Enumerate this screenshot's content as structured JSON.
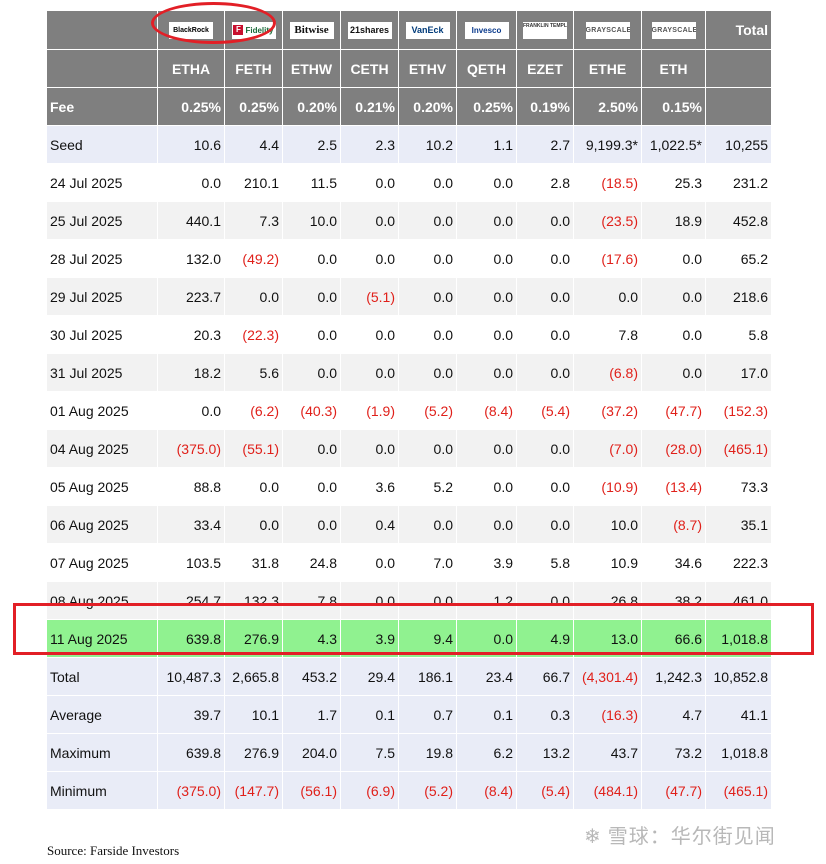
{
  "header": {
    "total_label": "Total",
    "funds": [
      {
        "logo": "BlackRock",
        "ticker": "ETHA",
        "fee": "0.25%"
      },
      {
        "logo": "Fidelity",
        "ticker": "FETH",
        "fee": "0.25%"
      },
      {
        "logo": "Bitwise",
        "ticker": "ETHW",
        "fee": "0.20%"
      },
      {
        "logo": "21shares",
        "ticker": "CETH",
        "fee": "0.21%"
      },
      {
        "logo": "VanEck",
        "ticker": "ETHV",
        "fee": "0.20%"
      },
      {
        "logo": "Invesco",
        "ticker": "QETH",
        "fee": "0.25%"
      },
      {
        "logo": "FRANKLIN TEMPLETON",
        "ticker": "EZET",
        "fee": "0.19%"
      },
      {
        "logo": "GRAYSCALE",
        "ticker": "ETHE",
        "fee": "2.50%"
      },
      {
        "logo": "GRAYSCALE",
        "ticker": "ETH",
        "fee": "0.15%"
      }
    ],
    "fee_label": "Fee"
  },
  "rows": [
    {
      "label": "Seed",
      "values": [
        "10.6",
        "4.4",
        "2.5",
        "2.3",
        "10.2",
        "1.1",
        "2.7",
        "9,199.3*",
        "1,022.5*",
        "10,255"
      ]
    },
    {
      "label": "24 Jul 2025",
      "values": [
        "0.0",
        "210.1",
        "11.5",
        "0.0",
        "0.0",
        "0.0",
        "2.8",
        "(18.5)",
        "25.3",
        "231.2"
      ]
    },
    {
      "label": "25 Jul 2025",
      "values": [
        "440.1",
        "7.3",
        "10.0",
        "0.0",
        "0.0",
        "0.0",
        "0.0",
        "(23.5)",
        "18.9",
        "452.8"
      ]
    },
    {
      "label": "28 Jul 2025",
      "values": [
        "132.0",
        "(49.2)",
        "0.0",
        "0.0",
        "0.0",
        "0.0",
        "0.0",
        "(17.6)",
        "0.0",
        "65.2"
      ]
    },
    {
      "label": "29 Jul 2025",
      "values": [
        "223.7",
        "0.0",
        "0.0",
        "(5.1)",
        "0.0",
        "0.0",
        "0.0",
        "0.0",
        "0.0",
        "218.6"
      ]
    },
    {
      "label": "30 Jul 2025",
      "values": [
        "20.3",
        "(22.3)",
        "0.0",
        "0.0",
        "0.0",
        "0.0",
        "0.0",
        "7.8",
        "0.0",
        "5.8"
      ]
    },
    {
      "label": "31 Jul 2025",
      "values": [
        "18.2",
        "5.6",
        "0.0",
        "0.0",
        "0.0",
        "0.0",
        "0.0",
        "(6.8)",
        "0.0",
        "17.0"
      ]
    },
    {
      "label": "01 Aug 2025",
      "values": [
        "0.0",
        "(6.2)",
        "(40.3)",
        "(1.9)",
        "(5.2)",
        "(8.4)",
        "(5.4)",
        "(37.2)",
        "(47.7)",
        "(152.3)"
      ]
    },
    {
      "label": "04 Aug 2025",
      "values": [
        "(375.0)",
        "(55.1)",
        "0.0",
        "0.0",
        "0.0",
        "0.0",
        "0.0",
        "(7.0)",
        "(28.0)",
        "(465.1)"
      ]
    },
    {
      "label": "05 Aug 2025",
      "values": [
        "88.8",
        "0.0",
        "0.0",
        "3.6",
        "5.2",
        "0.0",
        "0.0",
        "(10.9)",
        "(13.4)",
        "73.3"
      ]
    },
    {
      "label": "06 Aug 2025",
      "values": [
        "33.4",
        "0.0",
        "0.0",
        "0.4",
        "0.0",
        "0.0",
        "0.0",
        "10.0",
        "(8.7)",
        "35.1"
      ]
    },
    {
      "label": "07 Aug 2025",
      "values": [
        "103.5",
        "31.8",
        "24.8",
        "0.0",
        "7.0",
        "3.9",
        "5.8",
        "10.9",
        "34.6",
        "222.3"
      ]
    },
    {
      "label": "08 Aug 2025",
      "values": [
        "254.7",
        "132.3",
        "7.8",
        "0.0",
        "0.0",
        "1.2",
        "0.0",
        "26.8",
        "38.2",
        "461.0"
      ]
    },
    {
      "label": "11 Aug 2025",
      "values": [
        "639.8",
        "276.9",
        "4.3",
        "3.9",
        "9.4",
        "0.0",
        "4.9",
        "13.0",
        "66.6",
        "1,018.8"
      ]
    }
  ],
  "summary": [
    {
      "label": "Total",
      "values": [
        "10,487.3",
        "2,665.8",
        "453.2",
        "29.4",
        "186.1",
        "23.4",
        "66.7",
        "(4,301.4)",
        "1,242.3",
        "10,852.8"
      ]
    },
    {
      "label": "Average",
      "values": [
        "39.7",
        "10.1",
        "1.7",
        "0.1",
        "0.7",
        "0.1",
        "0.3",
        "(16.3)",
        "4.7",
        "41.1"
      ]
    },
    {
      "label": "Maximum",
      "values": [
        "639.8",
        "276.9",
        "204.0",
        "7.5",
        "19.8",
        "6.2",
        "13.2",
        "43.7",
        "73.2",
        "1,018.8"
      ]
    },
    {
      "label": "Minimum",
      "values": [
        "(375.0)",
        "(147.7)",
        "(56.1)",
        "(6.9)",
        "(5.2)",
        "(8.4)",
        "(5.4)",
        "(484.1)",
        "(47.7)",
        "(465.1)"
      ]
    }
  ],
  "source_text": "Source: Farside Investors",
  "watermark": "雪球：华尔街见闻",
  "colors": {
    "header_bg": "#7f7f7f",
    "negative": "#e0201a",
    "highlight_row": "#90f290",
    "annotation_red": "#e21f26",
    "summary_bg": "#e9ecf7"
  }
}
